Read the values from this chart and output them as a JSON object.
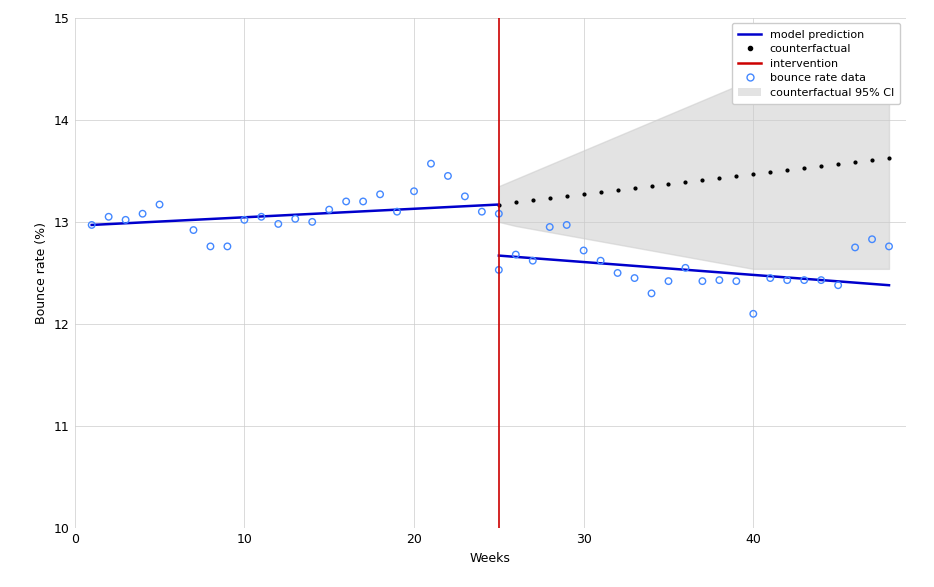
{
  "xlabel": "Weeks",
  "ylabel": "Bounce rate (%)",
  "ylim": [
    10,
    15
  ],
  "xlim": [
    0,
    49
  ],
  "yticks": [
    10,
    11,
    12,
    13,
    14,
    15
  ],
  "xticks": [
    0,
    10,
    20,
    30,
    40
  ],
  "intervention_week": 25,
  "pre_scatter_x": [
    1,
    2,
    3,
    4,
    5,
    7,
    8,
    9,
    10,
    11,
    12,
    13,
    14,
    15,
    16,
    17,
    18,
    19,
    20,
    21,
    22,
    23,
    24,
    25
  ],
  "pre_scatter_y": [
    12.97,
    13.05,
    13.02,
    13.08,
    13.17,
    12.92,
    12.76,
    12.76,
    13.02,
    13.05,
    12.98,
    13.03,
    13.0,
    13.12,
    13.2,
    13.2,
    13.27,
    13.1,
    13.3,
    13.57,
    13.45,
    13.25,
    13.1,
    13.08
  ],
  "pre_line_x": [
    1,
    25
  ],
  "pre_line_y": [
    12.97,
    13.17
  ],
  "post_scatter_x": [
    25,
    26,
    27,
    28,
    29,
    30,
    31,
    32,
    33,
    34,
    35,
    36,
    37,
    38,
    39,
    40,
    41,
    42,
    43,
    44,
    45,
    46,
    47,
    48
  ],
  "post_scatter_y": [
    12.53,
    12.68,
    12.62,
    12.95,
    12.97,
    12.72,
    12.62,
    12.5,
    12.45,
    12.3,
    12.42,
    12.55,
    12.42,
    12.43,
    12.42,
    12.1,
    12.45,
    12.43,
    12.43,
    12.43,
    12.38,
    12.75,
    12.83,
    12.76
  ],
  "post_line_x": [
    25,
    48
  ],
  "post_line_y": [
    12.67,
    12.38
  ],
  "counterfactual_x": [
    25,
    26,
    27,
    28,
    29,
    30,
    31,
    32,
    33,
    34,
    35,
    36,
    37,
    38,
    39,
    40,
    41,
    42,
    43,
    44,
    45,
    46,
    47,
    48
  ],
  "counterfactual_y": [
    13.17,
    13.19,
    13.21,
    13.23,
    13.25,
    13.27,
    13.29,
    13.31,
    13.33,
    13.35,
    13.37,
    13.39,
    13.41,
    13.43,
    13.45,
    13.47,
    13.49,
    13.51,
    13.53,
    13.55,
    13.57,
    13.59,
    13.61,
    13.63
  ],
  "ci_upper_y": [
    13.35,
    13.42,
    13.49,
    13.56,
    13.63,
    13.7,
    13.77,
    13.84,
    13.91,
    13.98,
    14.05,
    14.12,
    14.19,
    14.26,
    14.33,
    14.33,
    14.33,
    14.33,
    14.33,
    14.33,
    14.33,
    14.33,
    14.33,
    14.33
  ],
  "ci_lower_y": [
    13.0,
    12.96,
    12.93,
    12.9,
    12.87,
    12.84,
    12.81,
    12.78,
    12.75,
    12.72,
    12.69,
    12.66,
    12.63,
    12.6,
    12.57,
    12.54,
    12.54,
    12.54,
    12.54,
    12.54,
    12.54,
    12.54,
    12.54,
    12.54
  ],
  "line_color": "#0000cc",
  "scatter_color": "#4488ff",
  "counterfactual_color": "#000000",
  "intervention_color": "#cc0000",
  "ci_color": "#cccccc",
  "background_color": "#ffffff",
  "grid_color": "#cccccc",
  "figwidth": 9.34,
  "figheight": 5.87,
  "dpi": 100
}
